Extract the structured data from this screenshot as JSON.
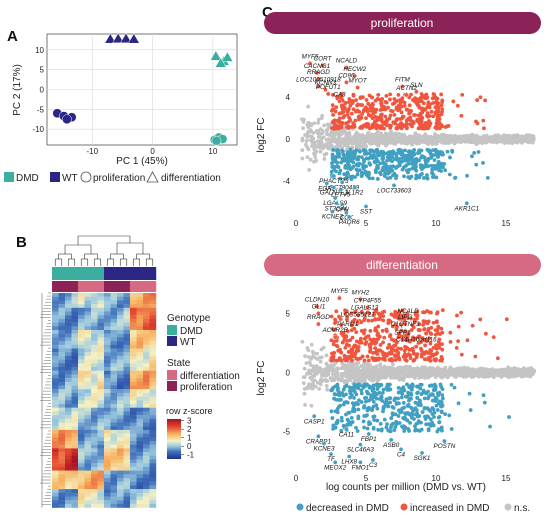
{
  "panels": {
    "a": "A",
    "b": "B",
    "c": "C"
  },
  "colors": {
    "dmd": "#3cae9f",
    "wt": "#2b2584",
    "up": "#f0553d",
    "down": "#41a0c2",
    "ns": "#c4c4c4",
    "prolif": "#8b2358",
    "diff": "#d66a82"
  },
  "chart_data": [
    {
      "type": "scatter",
      "panel": "A",
      "xlabel": "PC 1 (45%)",
      "ylabel": "PC 2 (17%)",
      "xticks": [
        "-10",
        "0",
        "10"
      ],
      "yticks": [
        "10",
        "5",
        "0",
        "-5",
        "-10"
      ],
      "xlim": [
        -17.5,
        14
      ],
      "ylim": [
        -14,
        14
      ],
      "series": [
        {
          "name": "DMD",
          "state": "proliferation",
          "marker": "circle",
          "color": "#3cae9f",
          "points": [
            [
              10.3,
              -12.7
            ],
            [
              11.0,
              -12.1
            ],
            [
              11.6,
              -12.5
            ],
            [
              10.6,
              -12.9
            ]
          ]
        },
        {
          "name": "DMD",
          "state": "differentiation",
          "marker": "triangle",
          "color": "#3cae9f",
          "points": [
            [
              10.5,
              8.5
            ],
            [
              11.8,
              7.2
            ],
            [
              12.4,
              8.2
            ],
            [
              11.3,
              6.7
            ]
          ]
        },
        {
          "name": "WT",
          "state": "proliferation",
          "marker": "circle",
          "color": "#2b2584",
          "points": [
            [
              -15.8,
              -6.0
            ],
            [
              -14.7,
              -6.7
            ],
            [
              -13.4,
              -7.0
            ],
            [
              -14.2,
              -7.5
            ]
          ]
        },
        {
          "name": "WT",
          "state": "differentiation",
          "marker": "triangle",
          "color": "#2b2584",
          "points": [
            [
              -7.0,
              12.8
            ],
            [
              -5.7,
              12.9
            ],
            [
              -4.4,
              12.9
            ],
            [
              -3.1,
              12.8
            ]
          ]
        }
      ],
      "legend": [
        {
          "label": "DMD",
          "symbol": "square",
          "color": "#3cae9f"
        },
        {
          "label": "WT",
          "symbol": "square",
          "color": "#2b2584"
        },
        {
          "label": "proliferation",
          "symbol": "circle",
          "color": "none"
        },
        {
          "label": "differentiation",
          "symbol": "triangle",
          "color": "none"
        }
      ]
    },
    {
      "type": "heatmap",
      "panel": "B",
      "legend": {
        "genotype_title": "Genotype",
        "genotype": [
          {
            "label": "DMD",
            "color": "#3cae9f"
          },
          {
            "label": "WT",
            "color": "#2b2584"
          }
        ],
        "state_title": "State",
        "state": [
          {
            "label": "differentiation",
            "color": "#d66a82"
          },
          {
            "label": "proliferation",
            "color": "#8b2358"
          }
        ],
        "scale_title": "row z-score",
        "scale_ticks": [
          "3",
          "2",
          "1",
          "0",
          "-1"
        ],
        "scale_range": [
          -1.5,
          3.2
        ]
      },
      "columns": [
        "DMD",
        "DMD",
        "DMD",
        "DMD",
        "DMD",
        "DMD",
        "DMD",
        "DMD",
        "WT",
        "WT",
        "WT",
        "WT",
        "WT",
        "WT",
        "WT",
        "WT"
      ],
      "col_state": [
        "proliferation",
        "proliferation",
        "proliferation",
        "proliferation",
        "differentiation",
        "differentiation",
        "differentiation",
        "differentiation",
        "proliferation",
        "proliferation",
        "proliferation",
        "proliferation",
        "differentiation",
        "differentiation",
        "differentiation",
        "differentiation"
      ],
      "row_blocks": [
        {
          "rows": 4,
          "zscores": [
            -0.3,
            -0.4,
            -0.3,
            -0.2,
            0.3,
            0.1,
            0.3,
            0.2,
            -0.4,
            -0.3,
            -0.4,
            -0.3,
            1.2,
            1.0,
            1.4,
            1.6
          ]
        },
        {
          "rows": 6,
          "zscores": [
            -0.5,
            -0.4,
            -0.5,
            -0.6,
            -0.3,
            -0.4,
            -0.2,
            -0.3,
            -0.2,
            -0.3,
            -0.2,
            -0.1,
            1.9,
            1.7,
            2.0,
            2.1
          ]
        },
        {
          "rows": 5,
          "zscores": [
            -0.2,
            -0.3,
            -0.4,
            -0.3,
            0.3,
            0.4,
            0.2,
            0.3,
            -0.5,
            -0.6,
            -0.5,
            -0.4,
            0.9,
            1.1,
            0.8,
            0.9
          ]
        },
        {
          "rows": 6,
          "zscores": [
            -0.6,
            -0.5,
            -0.6,
            -0.7,
            0.1,
            0.2,
            0.1,
            0.3,
            -0.3,
            -0.2,
            -0.3,
            -0.4,
            0.5,
            0.6,
            0.4,
            0.7
          ]
        },
        {
          "rows": 5,
          "zscores": [
            -0.4,
            -0.5,
            -0.3,
            -0.4,
            0.5,
            0.6,
            0.4,
            0.7,
            -0.6,
            -0.5,
            -0.7,
            -0.6,
            1.3,
            1.2,
            1.5,
            1.1
          ]
        },
        {
          "rows": 5,
          "zscores": [
            -0.3,
            -0.2,
            -0.3,
            -0.4,
            0.2,
            0.1,
            0.3,
            0.2,
            -0.1,
            -0.2,
            -0.1,
            -0.3,
            0.4,
            0.3,
            0.5,
            0.4
          ]
        },
        {
          "rows": 6,
          "zscores": [
            0.2,
            0.3,
            0.1,
            0.2,
            -0.2,
            -0.1,
            -0.3,
            -0.2,
            -0.4,
            -0.5,
            -0.3,
            -0.4,
            -0.6,
            -0.5,
            -0.7,
            -0.6
          ]
        },
        {
          "rows": 5,
          "zscores": [
            1.4,
            1.6,
            1.2,
            1.3,
            -0.4,
            -0.3,
            -0.5,
            -0.4,
            0.6,
            0.4,
            0.5,
            0.3,
            -0.5,
            -0.6,
            -0.4,
            -0.5
          ]
        },
        {
          "rows": 6,
          "zscores": [
            2.4,
            2.1,
            2.6,
            2.8,
            -0.2,
            -0.3,
            -0.1,
            -0.2,
            1.0,
            0.8,
            1.1,
            0.9,
            -0.3,
            -0.4,
            -0.3,
            -0.5
          ]
        },
        {
          "rows": 5,
          "zscores": [
            0.8,
            0.9,
            0.7,
            1.0,
            1.1,
            1.2,
            1.4,
            1.3,
            -0.3,
            -0.4,
            -0.2,
            -0.3,
            -0.6,
            -0.7,
            -0.5,
            -0.6
          ]
        },
        {
          "rows": 5,
          "zscores": [
            -0.4,
            -0.5,
            -0.3,
            -0.6,
            0.5,
            0.4,
            0.6,
            0.3,
            -0.5,
            -0.6,
            -0.4,
            -0.5,
            0.1,
            0.2,
            0.1,
            0.0
          ]
        }
      ]
    },
    {
      "type": "scatter",
      "panel": "C-top",
      "title": "proliferation",
      "xlabel": "",
      "ylabel": "log2 FC",
      "xticks": [
        "0",
        "5",
        "10",
        "15"
      ],
      "yticks": [
        "4",
        "0",
        "-4"
      ],
      "xlim": [
        0,
        17.5
      ],
      "ylim": [
        -7.5,
        10
      ],
      "labels": [
        {
          "text": "MYF5",
          "x": 1.0,
          "y": 7.2
        },
        {
          "text": "CORT",
          "x": 1.9,
          "y": 7.0
        },
        {
          "text": "NCALD",
          "x": 3.6,
          "y": 6.8
        },
        {
          "text": "CACNG1",
          "x": 1.5,
          "y": 6.3
        },
        {
          "text": "RRAGD",
          "x": 1.6,
          "y": 5.7
        },
        {
          "text": "LOC100510918",
          "x": 1.6,
          "y": 5.0
        },
        {
          "text": "KCNN3",
          "x": 2.1,
          "y": 4.7
        },
        {
          "text": "POFUT1",
          "x": 2.3,
          "y": 4.3
        },
        {
          "text": "HECW2",
          "x": 4.2,
          "y": 6.0
        },
        {
          "text": "CD96",
          "x": 3.6,
          "y": 5.4
        },
        {
          "text": "MYOT",
          "x": 4.4,
          "y": 4.9
        },
        {
          "text": "CA3",
          "x": 3.1,
          "y": 3.6
        },
        {
          "text": "FITM",
          "x": 7.6,
          "y": 5.0
        },
        {
          "text": "SLN",
          "x": 8.6,
          "y": 4.5
        },
        {
          "text": "ACTN2",
          "x": 7.9,
          "y": 4.2
        },
        {
          "text": "PHACTR3",
          "x": 2.7,
          "y": -3.5
        },
        {
          "text": "LOC780439",
          "x": 3.3,
          "y": -4.1
        },
        {
          "text": "EGR2",
          "x": 2.2,
          "y": -4.2
        },
        {
          "text": "GALNTL1",
          "x": 2.7,
          "y": -4.6
        },
        {
          "text": "LETV5",
          "x": 3.2,
          "y": -4.8
        },
        {
          "text": "IL1R2",
          "x": 4.2,
          "y": -4.6
        },
        {
          "text": "LOC733603",
          "x": 7.0,
          "y": -4.4
        },
        {
          "text": "LGALS9",
          "x": 2.8,
          "y": -5.6
        },
        {
          "text": "ST3GAL",
          "x": 2.9,
          "y": -6.1
        },
        {
          "text": "CFH",
          "x": 3.3,
          "y": -6.2
        },
        {
          "text": "SST",
          "x": 5.0,
          "y": -6.4
        },
        {
          "text": "KCNE3",
          "x": 2.6,
          "y": -6.9
        },
        {
          "text": "CCK",
          "x": 3.6,
          "y": -7.0
        },
        {
          "text": "PAQR6",
          "x": 3.8,
          "y": -7.4
        },
        {
          "text": "AKR1C1",
          "x": 12.2,
          "y": -6.1
        }
      ]
    },
    {
      "type": "scatter",
      "panel": "C-bottom",
      "title": "differentiation",
      "xlabel": "log counts per million (DMD vs. WT)",
      "ylabel": "log2 FC",
      "xticks": [
        "0",
        "5",
        "10",
        "15"
      ],
      "yticks": [
        "5",
        "0",
        "-5"
      ],
      "xlim": [
        0,
        17.5
      ],
      "ylim": [
        -8.5,
        8
      ],
      "labels": [
        {
          "text": "MYF5",
          "x": 3.1,
          "y": 6.3
        },
        {
          "text": "MYH2",
          "x": 4.6,
          "y": 6.2
        },
        {
          "text": "CLDN10",
          "x": 1.5,
          "y": 5.6
        },
        {
          "text": "CYP4F55",
          "x": 5.1,
          "y": 5.5
        },
        {
          "text": "GLI1",
          "x": 1.6,
          "y": 5.0
        },
        {
          "text": "LGALS13",
          "x": 4.9,
          "y": 4.9
        },
        {
          "text": "LOC595121",
          "x": 4.4,
          "y": 4.3
        },
        {
          "text": "NCALD",
          "x": 8.0,
          "y": 4.6
        },
        {
          "text": "RRAGD",
          "x": 1.6,
          "y": 4.1
        },
        {
          "text": "LIPG",
          "x": 7.8,
          "y": 4.1
        },
        {
          "text": "PARM1",
          "x": 3.7,
          "y": 3.5
        },
        {
          "text": "C1QTNF3",
          "x": 7.8,
          "y": 3.5
        },
        {
          "text": "ACVR2B",
          "x": 2.8,
          "y": 3.0
        },
        {
          "text": "SPP1",
          "x": 7.6,
          "y": 2.8
        },
        {
          "text": "C14H10orf116",
          "x": 8.6,
          "y": 2.2
        },
        {
          "text": "CASP1",
          "x": 1.3,
          "y": -3.7
        },
        {
          "text": "CA11",
          "x": 3.6,
          "y": -4.8
        },
        {
          "text": "FBP1",
          "x": 5.2,
          "y": -5.2
        },
        {
          "text": "CRABP1",
          "x": 1.6,
          "y": -5.4
        },
        {
          "text": "KCNE3",
          "x": 2.0,
          "y": -6.0
        },
        {
          "text": "ASB0",
          "x": 6.8,
          "y": -5.7
        },
        {
          "text": "POSTN",
          "x": 10.6,
          "y": -5.8
        },
        {
          "text": "SLC46A3",
          "x": 4.6,
          "y": -6.1
        },
        {
          "text": "C4",
          "x": 7.5,
          "y": -6.5
        },
        {
          "text": "SGK1",
          "x": 9.0,
          "y": -6.8
        },
        {
          "text": "TF",
          "x": 2.5,
          "y": -6.9
        },
        {
          "text": "LHX8",
          "x": 3.8,
          "y": -7.1
        },
        {
          "text": "C3",
          "x": 5.5,
          "y": -7.4
        },
        {
          "text": "MEOX2",
          "x": 2.8,
          "y": -7.6
        },
        {
          "text": "FMO1",
          "x": 4.6,
          "y": -7.6
        }
      ]
    }
  ],
  "legend_c": [
    {
      "label": "decreased in DMD",
      "color": "#41a0c2"
    },
    {
      "label": "increased in DMD",
      "color": "#f0553d"
    },
    {
      "label": "n.s.",
      "color": "#c4c4c4"
    }
  ]
}
